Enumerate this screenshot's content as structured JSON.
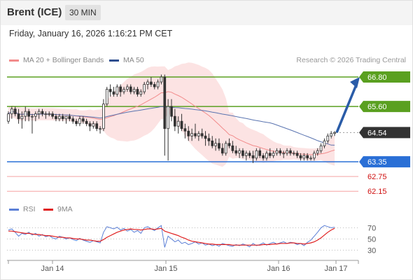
{
  "header": {
    "instrument": "Brent (ICE)",
    "interval": "30 MIN",
    "datetime": "Friday, January 16, 2026 1:16:21 PM CET"
  },
  "legend": {
    "ma20_label": "MA 20 + Bollinger Bands",
    "ma20_color": "#f28b8b",
    "ma50_label": "MA 50",
    "ma50_color": "#2f4f8f",
    "research": "Research © 2026 Trading Central"
  },
  "rsi_legend": {
    "rsi_label": "RSI",
    "rsi_color": "#5b7fd6",
    "ma9_label": "9MA",
    "ma9_color": "#e02020"
  },
  "chart_data": [
    {
      "type": "candlestick",
      "x_ticks": [
        "Jan 14",
        "Jan 15",
        "Jan 16",
        "Jan 17"
      ],
      "ylim": [
        61.9,
        67.2
      ],
      "current_price": 64.54,
      "levels": [
        {
          "label": "66.80",
          "value": 66.8,
          "kind": "resistance",
          "color": "#5aa020"
        },
        {
          "label": "65.60",
          "value": 65.6,
          "kind": "resistance",
          "color": "#5aa020"
        },
        {
          "label": "64.54",
          "value": 64.54,
          "kind": "last",
          "color": "#333333"
        },
        {
          "label": "63.35",
          "value": 63.35,
          "kind": "pivot",
          "color": "#2a6fd6"
        },
        {
          "label": "62.75",
          "value": 62.75,
          "kind": "support",
          "color": "#d01010"
        },
        {
          "label": "62.15",
          "value": 62.15,
          "kind": "support",
          "color": "#d01010"
        }
      ],
      "candles": [
        [
          65.0,
          65.4,
          64.9,
          65.3
        ],
        [
          65.3,
          65.6,
          65.1,
          65.5
        ],
        [
          65.5,
          65.6,
          65.2,
          65.3
        ],
        [
          65.3,
          65.5,
          64.9,
          65.1
        ],
        [
          65.1,
          65.4,
          64.7,
          65.2
        ],
        [
          65.2,
          65.6,
          65.0,
          65.4
        ],
        [
          65.4,
          65.5,
          65.0,
          65.2
        ],
        [
          65.2,
          65.3,
          64.5,
          65.2
        ],
        [
          65.2,
          65.4,
          65.0,
          65.3
        ],
        [
          65.3,
          65.5,
          65.1,
          65.4
        ],
        [
          65.4,
          65.5,
          65.2,
          65.3
        ],
        [
          65.3,
          65.4,
          65.1,
          65.3
        ],
        [
          65.3,
          65.4,
          65.2,
          65.3
        ],
        [
          65.3,
          65.4,
          65.1,
          65.2
        ],
        [
          65.2,
          65.3,
          65.0,
          65.1
        ],
        [
          65.1,
          65.3,
          65.0,
          65.2
        ],
        [
          65.2,
          65.3,
          65.0,
          65.1
        ],
        [
          65.1,
          65.2,
          64.9,
          65.2
        ],
        [
          65.2,
          65.3,
          65.0,
          65.1
        ],
        [
          65.1,
          65.2,
          64.9,
          65.0
        ],
        [
          65.0,
          65.1,
          64.8,
          64.9
        ],
        [
          64.9,
          65.2,
          64.8,
          65.1
        ],
        [
          65.1,
          65.2,
          64.9,
          65.0
        ],
        [
          65.0,
          65.1,
          64.8,
          64.9
        ],
        [
          64.9,
          65.0,
          64.6,
          64.8
        ],
        [
          64.8,
          65.0,
          64.7,
          64.9
        ],
        [
          64.9,
          65.0,
          64.6,
          64.7
        ],
        [
          64.7,
          64.8,
          64.5,
          64.7
        ],
        [
          64.7,
          65.9,
          64.6,
          65.7
        ],
        [
          65.7,
          66.4,
          65.6,
          66.3
        ],
        [
          66.3,
          66.5,
          66.0,
          66.2
        ],
        [
          66.2,
          66.4,
          66.0,
          66.1
        ],
        [
          66.1,
          66.5,
          66.0,
          66.4
        ],
        [
          66.4,
          66.5,
          66.0,
          66.2
        ],
        [
          66.2,
          66.4,
          66.1,
          66.3
        ],
        [
          66.3,
          66.5,
          66.2,
          66.4
        ],
        [
          66.4,
          66.5,
          66.1,
          66.2
        ],
        [
          66.2,
          66.4,
          66.1,
          66.3
        ],
        [
          66.3,
          66.4,
          66.0,
          66.1
        ],
        [
          66.1,
          66.3,
          66.0,
          66.2
        ],
        [
          66.2,
          66.6,
          66.1,
          66.5
        ],
        [
          66.5,
          66.7,
          66.3,
          66.6
        ],
        [
          66.6,
          66.8,
          66.4,
          66.5
        ],
        [
          66.5,
          66.6,
          66.3,
          66.4
        ],
        [
          66.4,
          66.7,
          66.3,
          66.6
        ],
        [
          66.6,
          66.9,
          66.5,
          66.8
        ],
        [
          66.8,
          66.9,
          63.6,
          64.7
        ],
        [
          64.7,
          65.9,
          63.4,
          65.6
        ],
        [
          65.6,
          65.9,
          65.0,
          65.2
        ],
        [
          65.2,
          65.5,
          64.6,
          64.8
        ],
        [
          64.8,
          65.2,
          64.5,
          65.0
        ],
        [
          65.0,
          65.3,
          64.6,
          64.7
        ],
        [
          64.7,
          64.9,
          64.3,
          64.6
        ],
        [
          64.6,
          64.8,
          64.2,
          64.4
        ],
        [
          64.4,
          64.7,
          64.2,
          64.5
        ],
        [
          64.5,
          64.9,
          64.3,
          64.4
        ],
        [
          64.4,
          64.6,
          64.2,
          64.5
        ],
        [
          64.5,
          64.7,
          64.3,
          64.4
        ],
        [
          64.4,
          64.6,
          64.0,
          64.3
        ],
        [
          64.3,
          64.5,
          64.0,
          64.2
        ],
        [
          64.2,
          64.4,
          63.9,
          64.0
        ],
        [
          64.0,
          64.3,
          63.8,
          64.1
        ],
        [
          64.1,
          64.3,
          63.8,
          63.9
        ],
        [
          63.9,
          64.1,
          63.6,
          63.7
        ],
        [
          63.7,
          64.2,
          63.6,
          64.1
        ],
        [
          64.1,
          64.3,
          63.9,
          64.0
        ],
        [
          64.0,
          64.2,
          63.7,
          63.8
        ],
        [
          63.8,
          64.0,
          63.6,
          63.7
        ],
        [
          63.7,
          63.9,
          63.5,
          63.8
        ],
        [
          63.8,
          63.9,
          63.5,
          63.6
        ],
        [
          63.6,
          63.8,
          63.4,
          63.7
        ],
        [
          63.7,
          63.8,
          63.5,
          63.6
        ],
        [
          63.6,
          63.8,
          63.3,
          63.5
        ],
        [
          63.5,
          63.9,
          63.4,
          63.8
        ],
        [
          63.8,
          63.9,
          63.5,
          63.6
        ],
        [
          63.6,
          63.7,
          63.4,
          63.5
        ],
        [
          63.5,
          63.8,
          63.4,
          63.7
        ],
        [
          63.7,
          63.9,
          63.5,
          63.6
        ],
        [
          63.6,
          63.8,
          63.5,
          63.7
        ],
        [
          63.7,
          63.9,
          63.6,
          63.8
        ],
        [
          63.8,
          63.9,
          63.6,
          63.7
        ],
        [
          63.7,
          63.8,
          63.5,
          63.7
        ],
        [
          63.7,
          63.9,
          63.6,
          63.8
        ],
        [
          63.8,
          63.9,
          63.6,
          63.7
        ],
        [
          63.7,
          63.8,
          63.6,
          63.7
        ],
        [
          63.7,
          63.8,
          63.5,
          63.6
        ],
        [
          63.6,
          63.7,
          63.4,
          63.5
        ],
        [
          63.5,
          63.7,
          63.4,
          63.6
        ],
        [
          63.6,
          63.7,
          63.4,
          63.5
        ],
        [
          63.5,
          63.6,
          63.4,
          63.5
        ],
        [
          63.5,
          63.8,
          63.4,
          63.7
        ],
        [
          63.7,
          63.9,
          63.6,
          63.8
        ],
        [
          63.8,
          64.1,
          63.7,
          64.0
        ],
        [
          64.0,
          64.3,
          63.9,
          64.2
        ],
        [
          64.2,
          64.5,
          64.1,
          64.4
        ],
        [
          64.4,
          64.6,
          64.3,
          64.5
        ],
        [
          64.5,
          64.6,
          64.4,
          64.54
        ]
      ]
    },
    {
      "type": "line",
      "title": "RSI",
      "y_ticks": [
        70,
        50,
        30
      ],
      "ylim": [
        18,
        88
      ],
      "series": [
        {
          "name": "RSI",
          "values": [
            66,
            68,
            62,
            55,
            60,
            58,
            62,
            57,
            60,
            55,
            58,
            54,
            56,
            52,
            50,
            55,
            53,
            50,
            52,
            49,
            47,
            51,
            48,
            46,
            44,
            47,
            45,
            43,
            62,
            72,
            70,
            68,
            71,
            66,
            69,
            64,
            67,
            62,
            65,
            60,
            70,
            72,
            68,
            65,
            70,
            74,
            35,
            55,
            50,
            45,
            48,
            42,
            44,
            40,
            42,
            45,
            41,
            43,
            39,
            41,
            38,
            40,
            37,
            42,
            40,
            38,
            37,
            40,
            38,
            41,
            39,
            36,
            42,
            38,
            40,
            43,
            39,
            42,
            44,
            41,
            43,
            45,
            42,
            44,
            43,
            40,
            42,
            38,
            44,
            48,
            55,
            62,
            70,
            74,
            72,
            70,
            71
          ]
        },
        {
          "name": "9MA",
          "values": [
            64,
            64,
            63,
            62,
            61,
            60,
            60,
            59,
            58,
            58,
            57,
            56,
            56,
            55,
            54,
            53,
            53,
            52,
            52,
            51,
            50,
            50,
            49,
            48,
            48,
            47,
            46,
            46,
            49,
            53,
            56,
            59,
            62,
            64,
            66,
            67,
            68,
            67,
            67,
            66,
            67,
            68,
            68,
            67,
            68,
            69,
            64,
            62,
            60,
            58,
            56,
            53,
            51,
            48,
            46,
            45,
            44,
            43,
            42,
            41,
            41,
            40,
            40,
            40,
            40,
            40,
            39,
            39,
            39,
            39,
            39,
            39,
            39,
            39,
            39,
            40,
            40,
            40,
            41,
            41,
            42,
            42,
            42,
            43,
            43,
            42,
            42,
            41,
            42,
            43,
            45,
            48,
            52,
            57,
            62,
            66,
            69
          ]
        }
      ]
    }
  ]
}
